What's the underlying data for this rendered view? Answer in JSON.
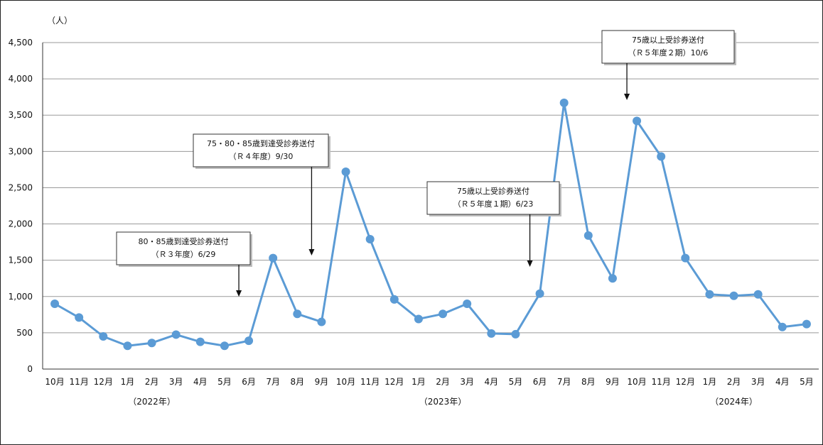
{
  "chart_data": {
    "type": "line",
    "unit_label": "（人）",
    "categories": [
      "10月",
      "11月",
      "12月",
      "1月",
      "2月",
      "3月",
      "4月",
      "5月",
      "6月",
      "7月",
      "8月",
      "9月",
      "10月",
      "11月",
      "12月",
      "1月",
      "2月",
      "3月",
      "4月",
      "5月",
      "6月",
      "7月",
      "8月",
      "9月",
      "10月",
      "11月",
      "12月",
      "1月",
      "2月",
      "3月",
      "4月",
      "5月"
    ],
    "values": [
      900,
      710,
      450,
      320,
      360,
      475,
      375,
      320,
      390,
      1530,
      760,
      650,
      2720,
      1790,
      960,
      690,
      760,
      900,
      490,
      480,
      1040,
      3670,
      1840,
      1250,
      3420,
      2930,
      1530,
      1030,
      1010,
      1030,
      580,
      620
    ],
    "year_labels": [
      {
        "text": "（2022年）",
        "index": 4
      },
      {
        "text": "（2023年）",
        "index": 16
      },
      {
        "text": "（2024年）",
        "index": 28
      }
    ],
    "yticks": [
      0,
      500,
      1000,
      1500,
      2000,
      2500,
      3000,
      3500,
      4000,
      4500
    ],
    "ytick_labels": [
      "0",
      "500",
      "1,000",
      "1,500",
      "2,000",
      "2,500",
      "3,000",
      "3,500",
      "4,000",
      "4,500"
    ],
    "ylim": [
      0,
      4500
    ],
    "grid": true,
    "series_color": "#5b9bd5",
    "annotations": [
      {
        "line1": "80・85歳到達受診券送付",
        "line2": "（Ｒ３年度）6/29",
        "arrow_index": 8
      },
      {
        "line1": "75・80・85歳到達受診券送付",
        "line2": "（Ｒ４年度）9/30",
        "arrow_index": 11
      },
      {
        "line1": "75歳以上受診券送付",
        "line2": "（Ｒ５年度１期）6/23",
        "arrow_index": 20
      },
      {
        "line1": "75歳以上受診券送付",
        "line2": "（Ｒ５年度２期）10/6",
        "arrow_index": 24
      }
    ]
  }
}
